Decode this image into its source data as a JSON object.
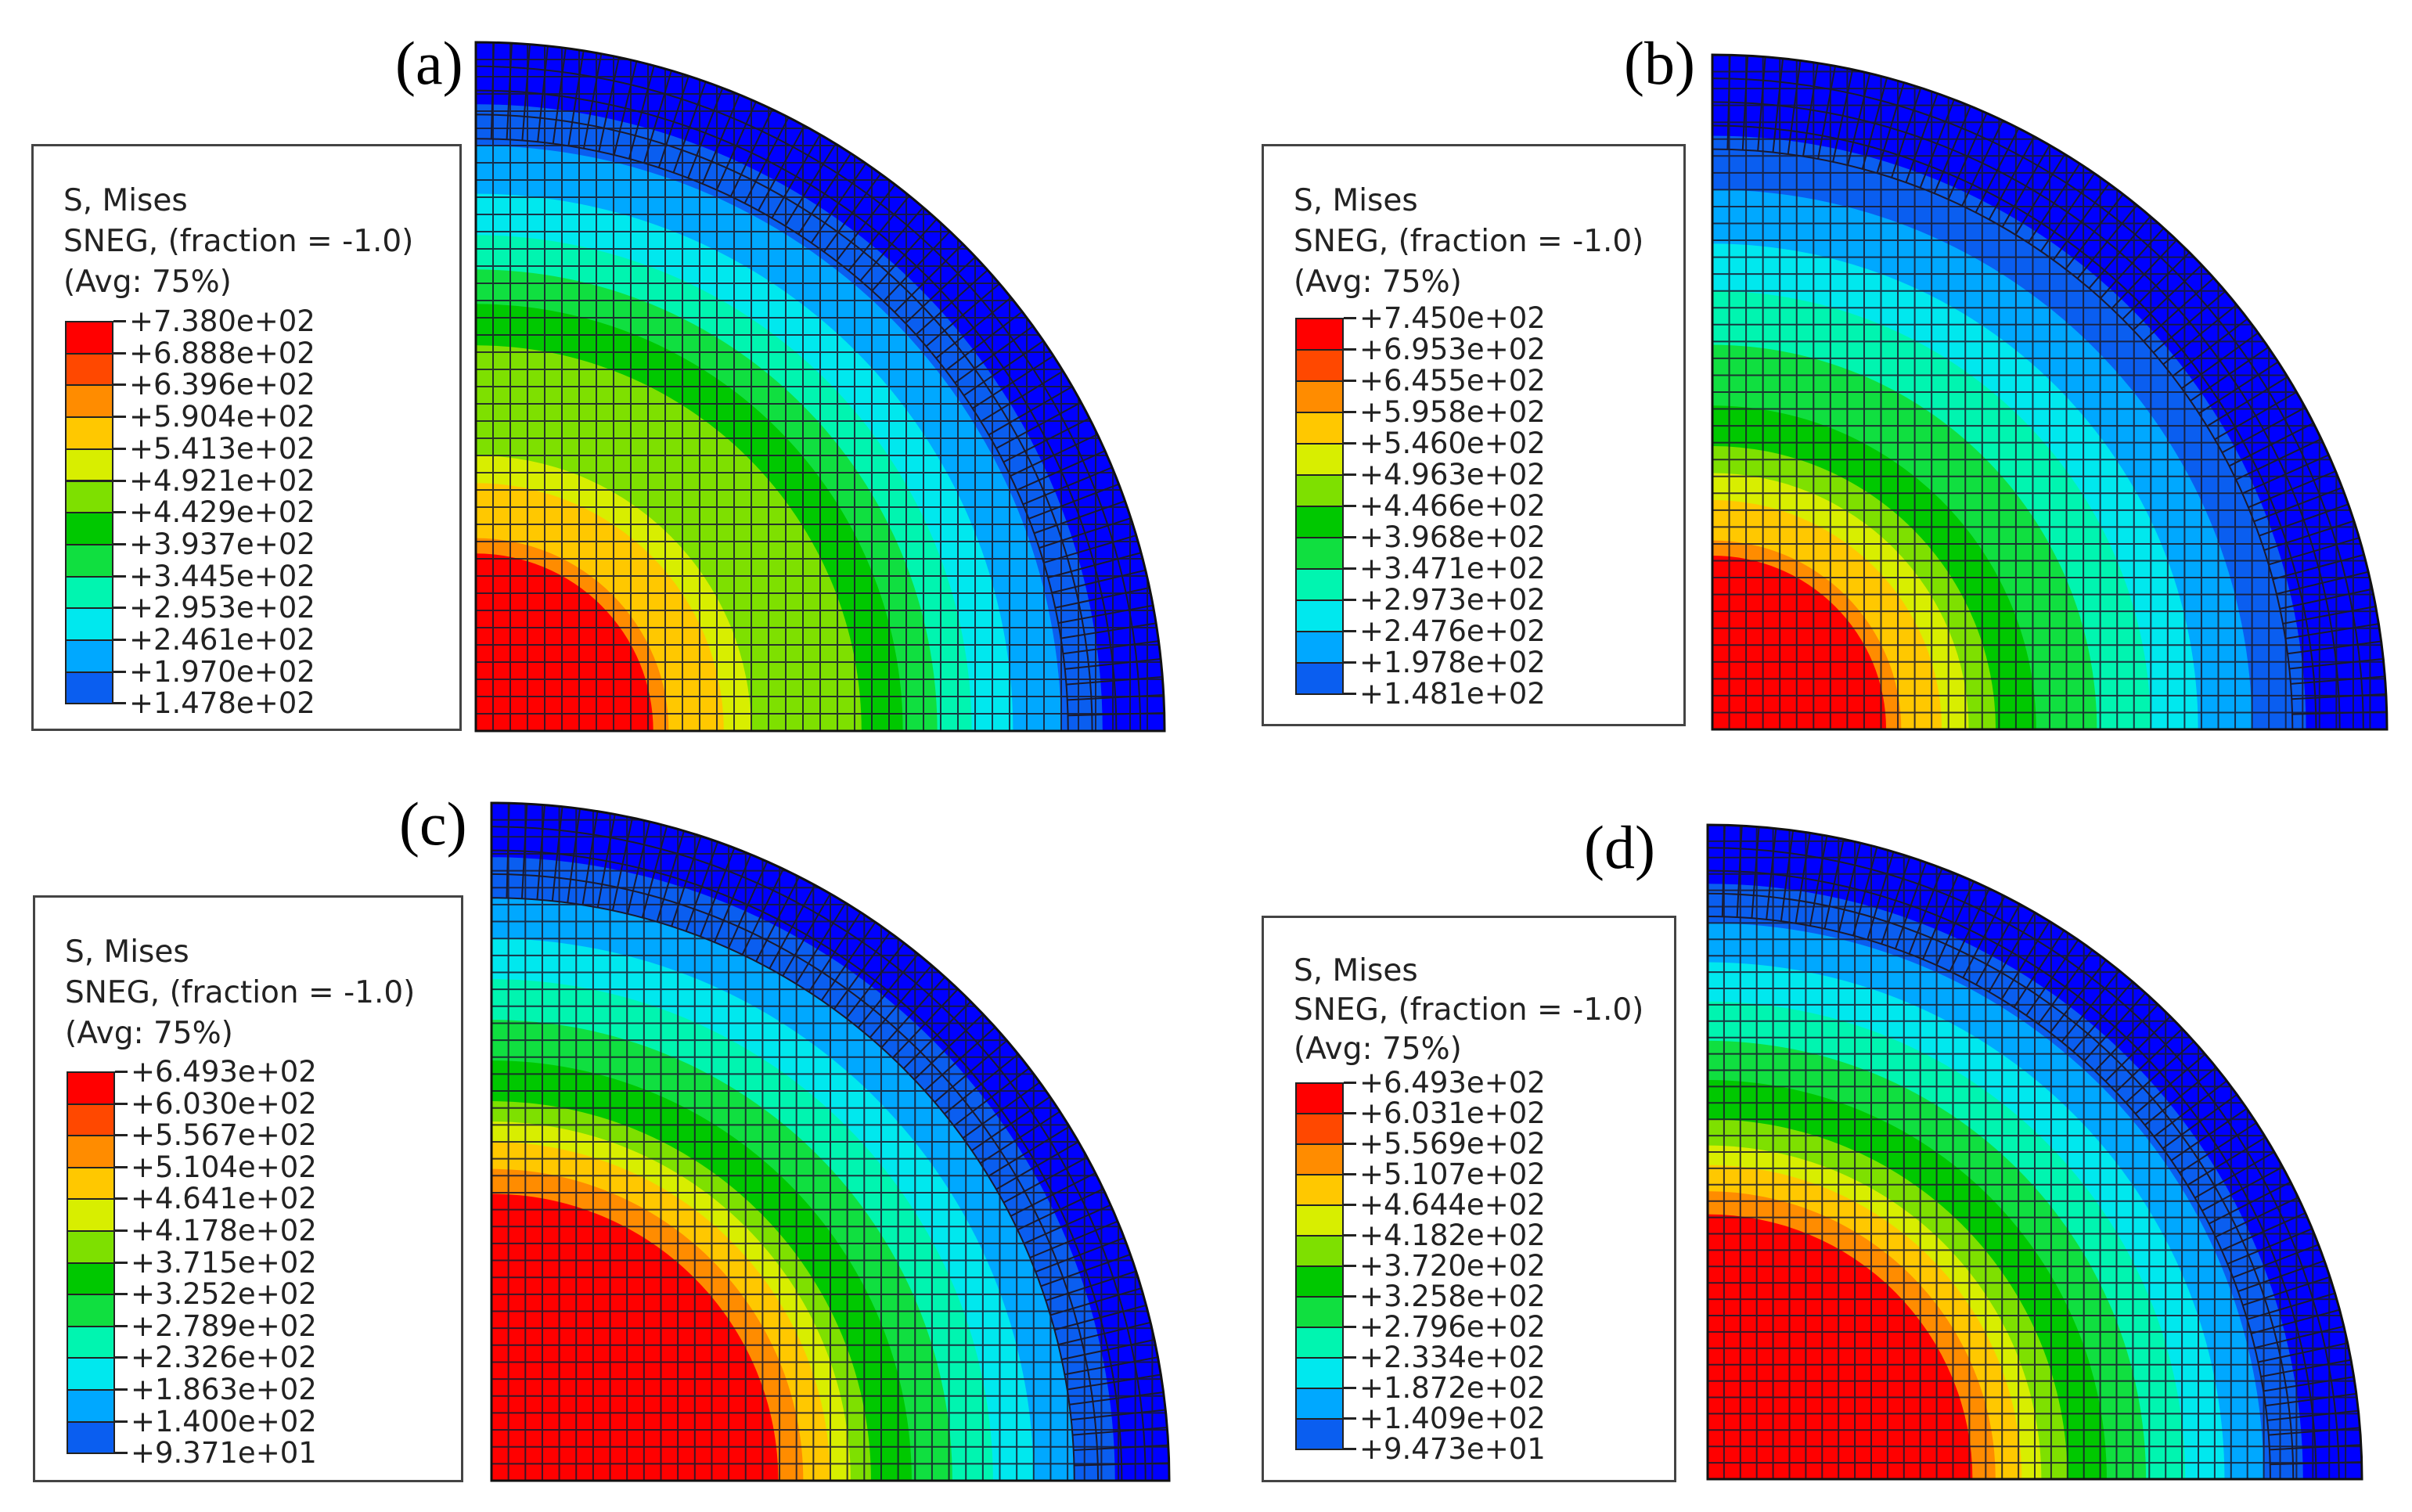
{
  "colors": [
    "#0000ff",
    "#0a5ef0",
    "#00a8ff",
    "#00e8ee",
    "#00f5b0",
    "#10df40",
    "#00c800",
    "#7ee000",
    "#d8ee00",
    "#ffc800",
    "#ff8c00",
    "#ff4800",
    "#ff0000"
  ],
  "panels": [
    {
      "label": "(a)",
      "legend": {
        "title": "S, Mises",
        "subtitle": "SNEG, (fraction = -1.0)",
        "avg": "(Avg: 75%)",
        "values": [
          "+7.380e+02",
          "+6.888e+02",
          "+6.396e+02",
          "+5.904e+02",
          "+5.413e+02",
          "+4.921e+02",
          "+4.429e+02",
          "+3.937e+02",
          "+3.445e+02",
          "+2.953e+02",
          "+2.461e+02",
          "+1.970e+02",
          "+1.478e+02"
        ]
      },
      "contour_fractions": [
        0.28,
        0.36,
        0.4,
        0.56,
        0.62,
        0.67,
        0.72,
        0.78,
        0.85,
        0.91,
        1.0
      ]
    },
    {
      "label": "(b)",
      "legend": {
        "title": "S, Mises",
        "subtitle": "SNEG, (fraction = -1.0)",
        "avg": "(Avg: 75%)",
        "values": [
          "+7.450e+02",
          "+6.953e+02",
          "+6.455e+02",
          "+5.958e+02",
          "+5.460e+02",
          "+4.963e+02",
          "+4.466e+02",
          "+3.968e+02",
          "+3.471e+02",
          "+2.973e+02",
          "+2.476e+02",
          "+1.978e+02",
          "+1.481e+02"
        ]
      },
      "contour_fractions": [
        0.28,
        0.34,
        0.38,
        0.42,
        0.48,
        0.57,
        0.65,
        0.72,
        0.8,
        0.88,
        1.0
      ]
    },
    {
      "label": "(c)",
      "legend": {
        "title": "S, Mises",
        "subtitle": "SNEG, (fraction = -1.0)",
        "avg": "(Avg: 75%)",
        "values": [
          "+6.493e+02",
          "+6.030e+02",
          "+5.567e+02",
          "+5.104e+02",
          "+4.641e+02",
          "+4.178e+02",
          "+3.715e+02",
          "+3.252e+02",
          "+2.789e+02",
          "+2.326e+02",
          "+1.863e+02",
          "+1.400e+02",
          "+9.371e+01"
        ]
      },
      "contour_fractions": [
        0.46,
        0.5,
        0.53,
        0.56,
        0.62,
        0.68,
        0.74,
        0.8,
        0.86,
        0.92,
        1.0
      ]
    },
    {
      "label": "(d)",
      "legend": {
        "title": "S, Mises",
        "subtitle": "SNEG, (fraction = -1.0)",
        "avg": "(Avg: 75%)",
        "values": [
          "+6.493e+02",
          "+6.031e+02",
          "+5.569e+02",
          "+5.107e+02",
          "+4.644e+02",
          "+4.182e+02",
          "+3.720e+02",
          "+3.258e+02",
          "+2.796e+02",
          "+2.334e+02",
          "+1.872e+02",
          "+1.409e+02",
          "+9.473e+01"
        ]
      },
      "contour_fractions": [
        0.44,
        0.48,
        0.51,
        0.55,
        0.61,
        0.67,
        0.73,
        0.79,
        0.85,
        0.91,
        1.0
      ]
    }
  ]
}
